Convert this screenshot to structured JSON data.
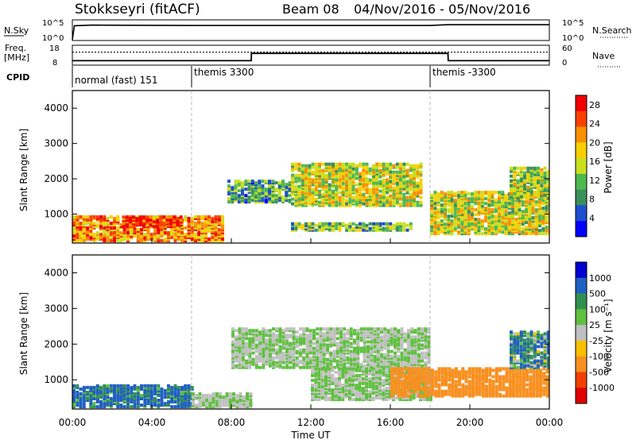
{
  "header": {
    "station": "Stokkseyri (fitACF)",
    "beam": "Beam 08",
    "date_range": "04/Nov/2016 - 05/Nov/2016"
  },
  "noise_panel": {
    "left_label": "N.Sky",
    "left_ticks": [
      "10^5",
      "10^0"
    ],
    "right_label": "N.Search",
    "right_ticks": [
      "10^5",
      "10^0"
    ]
  },
  "freq_panel": {
    "left_label_1": "Freq.",
    "left_label_2": "[MHz]",
    "left_ticks": [
      "18",
      "8"
    ],
    "right_label": "Nave",
    "right_ticks": [
      "60",
      "0"
    ]
  },
  "cpid": {
    "label": "CPID",
    "segments": [
      {
        "label": "normal (fast) 151",
        "start_hour": 0
      },
      {
        "label": "themis 3300",
        "start_hour": 6
      },
      {
        "label": "themis -3300",
        "start_hour": 18
      }
    ]
  },
  "axes": {
    "ylabel": "Slant Range [km]",
    "yticks": [
      "1000",
      "2000",
      "3000",
      "4000"
    ],
    "xticks": [
      "00:00",
      "04:00",
      "08:00",
      "12:00",
      "16:00",
      "20:00",
      "00:00"
    ],
    "xlabel": "Time UT"
  },
  "colors": {
    "ground_scatter": "#c0c0c0",
    "power_scale": [
      "#0000ff",
      "#1f4fcf",
      "#3a8f5a",
      "#4fb84f",
      "#c8e020",
      "#f8d000",
      "#f89000",
      "#f84000",
      "#f00000"
    ],
    "velocity_scale": [
      "#0000d0",
      "#2060c0",
      "#309050",
      "#60c040",
      "#c0c0c0",
      "#f8c000",
      "#f89020",
      "#f04000",
      "#e00000"
    ]
  },
  "power_colorbar": {
    "title": "Power [dB]",
    "labels": [
      "4",
      "8",
      "12",
      "16",
      "20",
      "24",
      "28"
    ]
  },
  "velocity_colorbar": {
    "title": "Velocity [m s⁻¹]",
    "labels": [
      "1000",
      "500",
      "100",
      "25",
      "-25",
      "-100",
      "-500",
      "-1000"
    ]
  },
  "chart_data": [
    {
      "type": "heatmap",
      "title": "Power",
      "xlabel": "Time UT",
      "ylabel": "Slant Range [km]",
      "xlim_hours": [
        0,
        24
      ],
      "ylim": [
        180,
        4500
      ],
      "colorbar_range": [
        0,
        30
      ],
      "units": "dB",
      "regions": [
        {
          "t": [
            0.0,
            7.5
          ],
          "r": [
            200,
            900
          ],
          "power": 22
        },
        {
          "t": [
            2.5,
            5.5
          ],
          "r": [
            600,
            900
          ],
          "power": 26
        },
        {
          "t": [
            7.8,
            11.0
          ],
          "r": [
            1300,
            1900
          ],
          "power": 10
        },
        {
          "t": [
            11.0,
            17.5
          ],
          "r": [
            1200,
            2400
          ],
          "power": 16
        },
        {
          "t": [
            11.0,
            17.0
          ],
          "r": [
            500,
            700
          ],
          "power": 12
        },
        {
          "t": [
            18.0,
            24.0
          ],
          "r": [
            400,
            1600
          ],
          "power": 16
        },
        {
          "t": [
            22.0,
            24.0
          ],
          "r": [
            1400,
            2300
          ],
          "power": 14
        }
      ]
    },
    {
      "type": "heatmap",
      "title": "Velocity",
      "xlabel": "Time UT",
      "ylabel": "Slant Range [km]",
      "xlim_hours": [
        0,
        24
      ],
      "ylim": [
        180,
        4500
      ],
      "colorbar_range": [
        -1000,
        1000
      ],
      "units": "m s-1",
      "regions": [
        {
          "t": [
            0.0,
            6.0
          ],
          "r": [
            200,
            800
          ],
          "velocity": 150
        },
        {
          "t": [
            6.0,
            9.0
          ],
          "r": [
            200,
            600
          ],
          "velocity": 0
        },
        {
          "t": [
            8.0,
            18.0
          ],
          "r": [
            1300,
            2400
          ],
          "velocity": 0
        },
        {
          "t": [
            12.0,
            18.0
          ],
          "r": [
            400,
            1300
          ],
          "velocity": 0
        },
        {
          "t": [
            16.0,
            24.0
          ],
          "r": [
            500,
            1300
          ],
          "velocity": -250
        },
        {
          "t": [
            22.0,
            24.0
          ],
          "r": [
            1300,
            2300
          ],
          "velocity": 100
        }
      ]
    },
    {
      "type": "line",
      "title": "N.Sky",
      "x_hours": [
        0.0,
        0.1,
        1.0,
        6.0,
        12.0,
        18.0,
        18.9,
        24.0
      ],
      "values": [
        1,
        10000,
        15000,
        12000,
        12000,
        12000,
        20000,
        20000
      ]
    },
    {
      "type": "line",
      "title": "Freq.",
      "x_hours": [
        0.0,
        9.0,
        9.01,
        18.9,
        18.91,
        24.0
      ],
      "values": [
        10,
        10,
        14,
        14,
        10,
        10
      ],
      "secondary": {
        "name": "Nave",
        "x_hours": [
          0.0,
          24.0
        ],
        "values": [
          40,
          40
        ]
      }
    }
  ]
}
